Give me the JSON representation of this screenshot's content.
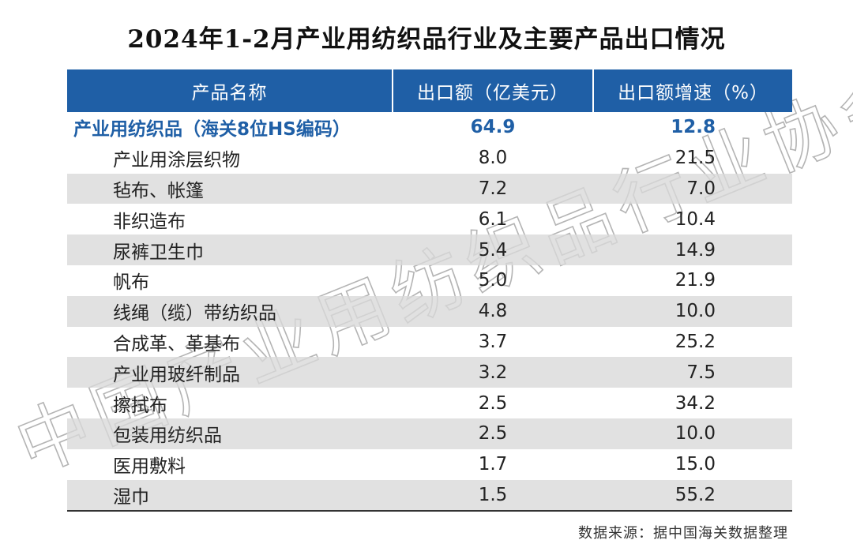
{
  "title": "2024年1-2月产业用纺织品行业及主要产品出口情况",
  "watermark": "中国产业用纺织品行业协会",
  "source": "数据来源：据中国海关数据整理",
  "chart_data": {
    "type": "table",
    "columns": [
      "产品名称",
      "出口额（亿美元）",
      "出口额增速（%）"
    ],
    "total": {
      "name": "产业用纺织品（海关8位HS编码）",
      "export": "64.9",
      "growth": "12.8"
    },
    "rows": [
      {
        "name": "产业用涂层织物",
        "export": "8.0",
        "growth": "21.5"
      },
      {
        "name": "毡布、帐篷",
        "export": "7.2",
        "growth": "7.0"
      },
      {
        "name": "非织造布",
        "export": "6.1",
        "growth": "10.4"
      },
      {
        "name": "尿裤卫生巾",
        "export": "5.4",
        "growth": "14.9"
      },
      {
        "name": "帆布",
        "export": "5.0",
        "growth": "21.9"
      },
      {
        "name": "线绳（缆）带纺织品",
        "export": "4.8",
        "growth": "10.0"
      },
      {
        "name": "合成革、革基布",
        "export": "3.7",
        "growth": "25.2"
      },
      {
        "name": "产业用玻纤制品",
        "export": "3.2",
        "growth": "7.5"
      },
      {
        "name": "擦拭布",
        "export": "2.5",
        "growth": "34.2"
      },
      {
        "name": "包装用纺织品",
        "export": "2.5",
        "growth": "10.0"
      },
      {
        "name": "医用敷料",
        "export": "1.7",
        "growth": "15.0"
      },
      {
        "name": "湿巾",
        "export": "1.5",
        "growth": "55.2"
      }
    ]
  }
}
